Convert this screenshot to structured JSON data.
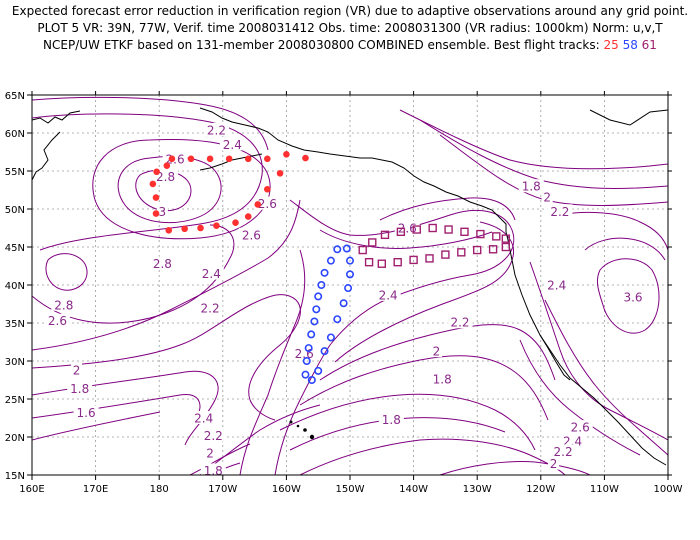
{
  "title": {
    "line1": "Expected forecast error reduction in verification region (VR) due to adaptive observations around any grid point.",
    "line2": "PLOT 5 VR: 39N, 77W, Verif. time 2008031412 Obs. time: 2008031300 (VR radius: 1000km) Norm: u,v,T",
    "line3_prefix": "NCEP/UW ETKF based on 131-member 2008030800 COMBINED ensemble.  Best flight tracks:",
    "track_ids": [
      "25",
      "58",
      "61"
    ]
  },
  "axes": {
    "lon_ticks": [
      "160E",
      "170E",
      "180",
      "170W",
      "160W",
      "150W",
      "140W",
      "130W",
      "120W",
      "110W",
      "100W"
    ],
    "lat_ticks": [
      "15N",
      "20N",
      "25N",
      "30N",
      "35N",
      "40N",
      "45N",
      "50N",
      "55N",
      "60N",
      "65N"
    ]
  },
  "colors": {
    "contour": "#800080",
    "label": "#8a2a8a",
    "coast": "#000000",
    "grid": "#9a9a9a",
    "track25": "#ff3030",
    "track58": "#2b46ff",
    "track61": "#a0206f"
  },
  "contour_labels": [
    {
      "text": "2.2",
      "lon": -171.0,
      "lat": 60.4
    },
    {
      "text": "2.4",
      "lon": -168.5,
      "lat": 58.5
    },
    {
      "text": "2.6",
      "lon": -177.5,
      "lat": 56.6
    },
    {
      "text": "2.8",
      "lon": -179.0,
      "lat": 54.3
    },
    {
      "text": "3",
      "lon": -179.5,
      "lat": 49.7
    },
    {
      "text": "2.6",
      "lon": -163.0,
      "lat": 50.7
    },
    {
      "text": "2.6",
      "lon": -165.5,
      "lat": 46.6
    },
    {
      "text": "2.8",
      "lon": -179.5,
      "lat": 42.8
    },
    {
      "text": "2.4",
      "lon": -171.8,
      "lat": 41.5
    },
    {
      "text": "2.8",
      "lon": 165.0,
      "lat": 37.4
    },
    {
      "text": "2.6",
      "lon": 164.0,
      "lat": 35.3
    },
    {
      "text": "2.2",
      "lon": -172.0,
      "lat": 37.0
    },
    {
      "text": "2",
      "lon": 167.0,
      "lat": 28.8
    },
    {
      "text": "1.8",
      "lon": 167.5,
      "lat": 26.4
    },
    {
      "text": "1.6",
      "lon": 168.5,
      "lat": 23.2
    },
    {
      "text": "2.4",
      "lon": -173.0,
      "lat": 22.5
    },
    {
      "text": "2.2",
      "lon": -171.5,
      "lat": 20.2
    },
    {
      "text": "2",
      "lon": -172.0,
      "lat": 17.9
    },
    {
      "text": "1.8",
      "lon": -171.5,
      "lat": 15.6
    },
    {
      "text": "1.6",
      "lon": -171.0,
      "lat": 13.2
    },
    {
      "text": "2.6",
      "lon": -157.2,
      "lat": 31.0
    },
    {
      "text": "2.4",
      "lon": -144.0,
      "lat": 38.7
    },
    {
      "text": "2.2",
      "lon": -132.7,
      "lat": 35.1
    },
    {
      "text": "2",
      "lon": -136.4,
      "lat": 31.3
    },
    {
      "text": "1.8",
      "lon": -135.5,
      "lat": 27.6
    },
    {
      "text": "1.8",
      "lon": -143.5,
      "lat": 22.3
    },
    {
      "text": "2.6",
      "lon": -141.0,
      "lat": 47.5
    },
    {
      "text": "2.4",
      "lon": -117.5,
      "lat": 40.0
    },
    {
      "text": "1.8",
      "lon": -121.5,
      "lat": 53.0
    },
    {
      "text": "2",
      "lon": -119.0,
      "lat": 51.6
    },
    {
      "text": "2.2",
      "lon": -117.0,
      "lat": 49.7
    },
    {
      "text": "3.6",
      "lon": -105.5,
      "lat": 38.4
    },
    {
      "text": "2.6",
      "lon": -113.8,
      "lat": 21.3
    },
    {
      "text": "2.4",
      "lon": -115.0,
      "lat": 19.5
    },
    {
      "text": "2.2",
      "lon": -116.5,
      "lat": 18.1
    },
    {
      "text": "2",
      "lon": -118.0,
      "lat": 16.5
    },
    {
      "text": "1.8",
      "lon": -119.5,
      "lat": 14.1
    }
  ],
  "tracks": {
    "track25": [
      [
        -178,
        56.6
      ],
      [
        -175,
        56.6
      ],
      [
        -172,
        56.6
      ],
      [
        -169,
        56.6
      ],
      [
        -166,
        56.6
      ],
      [
        -163,
        56.6
      ],
      [
        -160,
        57.2
      ],
      [
        -157,
        56.7
      ],
      [
        -161,
        54.7
      ],
      [
        -163,
        52.6
      ],
      [
        -164.5,
        50.6
      ],
      [
        -166,
        49.0
      ],
      [
        -168,
        48.2
      ],
      [
        -171,
        47.8
      ],
      [
        -173.5,
        47.5
      ],
      [
        -176,
        47.4
      ],
      [
        -178.5,
        47.2
      ],
      [
        179.5,
        49.4
      ],
      [
        179.5,
        51.5
      ],
      [
        179.0,
        53.3
      ],
      [
        179.6,
        54.9
      ],
      [
        -178.8,
        55.7
      ]
    ],
    "track58": [
      [
        -155.6,
        35.2
      ],
      [
        -156.1,
        33.5
      ],
      [
        -156.5,
        31.7
      ],
      [
        -156.8,
        30.0
      ],
      [
        -157.0,
        28.2
      ],
      [
        -156.0,
        27.5
      ],
      [
        -155.0,
        28.7
      ],
      [
        -154.0,
        31.3
      ],
      [
        -153.0,
        33.1
      ],
      [
        -152.0,
        35.5
      ],
      [
        -151.0,
        37.6
      ],
      [
        -150.3,
        39.6
      ],
      [
        -150.0,
        41.4
      ],
      [
        -150.0,
        43.2
      ],
      [
        -150.5,
        44.8
      ],
      [
        -152.0,
        44.7
      ],
      [
        -153.0,
        43.2
      ],
      [
        -154.0,
        41.6
      ],
      [
        -154.5,
        40.0
      ],
      [
        -155.0,
        38.5
      ],
      [
        -155.3,
        36.8
      ]
    ],
    "track61": [
      [
        -148.0,
        44.6
      ],
      [
        -146.5,
        45.6
      ],
      [
        -144.5,
        46.6
      ],
      [
        -142.0,
        47.0
      ],
      [
        -139.5,
        47.3
      ],
      [
        -137.0,
        47.5
      ],
      [
        -134.5,
        47.3
      ],
      [
        -132.0,
        47.0
      ],
      [
        -129.5,
        46.7
      ],
      [
        -127.0,
        46.4
      ],
      [
        -125.5,
        46.1
      ],
      [
        -125.5,
        45.0
      ],
      [
        -127.5,
        44.7
      ],
      [
        -130.0,
        44.6
      ],
      [
        -132.5,
        44.3
      ],
      [
        -135.0,
        44.0
      ],
      [
        -137.5,
        43.5
      ],
      [
        -140.0,
        43.3
      ],
      [
        -142.5,
        43.0
      ],
      [
        -145.0,
        42.8
      ],
      [
        -147.0,
        43.0
      ]
    ]
  }
}
